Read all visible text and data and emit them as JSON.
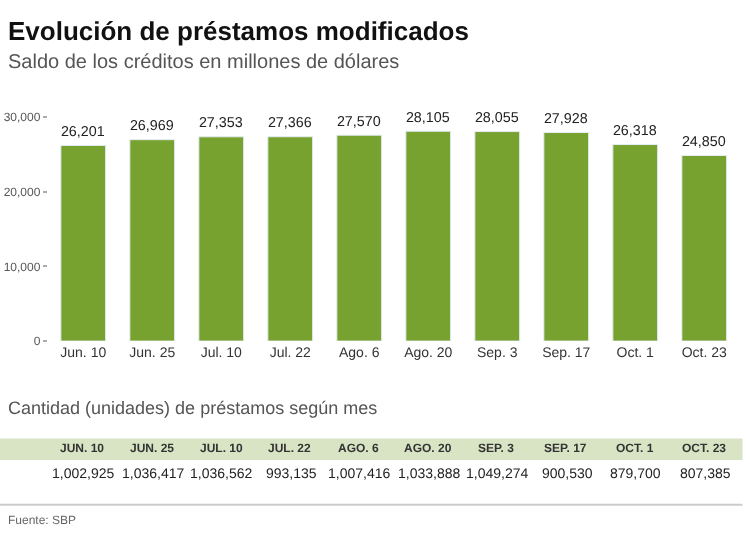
{
  "chart_data": [
    {
      "type": "bar",
      "title": "Evolución de préstamos modificados",
      "subtitle": "Saldo de los créditos en millones de dólares",
      "categories": [
        "Jun. 10",
        "Jun. 25",
        "Jul. 10",
        "Jul. 22",
        "Ago. 6",
        "Ago. 20",
        "Sep. 3",
        "Sep. 17",
        "Oct. 1",
        "Oct. 23"
      ],
      "values": [
        26201,
        26969,
        27353,
        27366,
        27570,
        28105,
        28055,
        27928,
        26318,
        24850
      ],
      "value_labels": [
        "26,201",
        "26,969",
        "27,353",
        "27,366",
        "27,570",
        "28,105",
        "28,055",
        "27,928",
        "26,318",
        "24,850"
      ],
      "color": "#78a22f",
      "ylim": [
        0,
        30000
      ],
      "yticks": [
        {
          "value": 0,
          "label": "0"
        },
        {
          "value": 10000,
          "label": "10,000"
        },
        {
          "value": 20000,
          "label": "20,000"
        },
        {
          "value": 30000,
          "label": "30,000"
        }
      ],
      "legend": false
    },
    {
      "type": "other",
      "title": "Cantidad (unidades) de préstamos según mes",
      "categories": [
        "JUN. 10",
        "JUN. 25",
        "JUL. 10",
        "JUL. 22",
        "AGO. 6",
        "AGO. 20",
        "SEP. 3",
        "SEP. 17",
        "OCT. 1",
        "OCT. 23"
      ],
      "value_labels": [
        "1,002,925",
        "1,036,417",
        "1,036,562",
        "993,135",
        "1,007,416",
        "1,033,888",
        "1,049,274",
        "900,530",
        "879,700",
        "807,385"
      ],
      "color": "#d8e4c4",
      "annotations": [
        "Fuente: SBP"
      ]
    }
  ]
}
